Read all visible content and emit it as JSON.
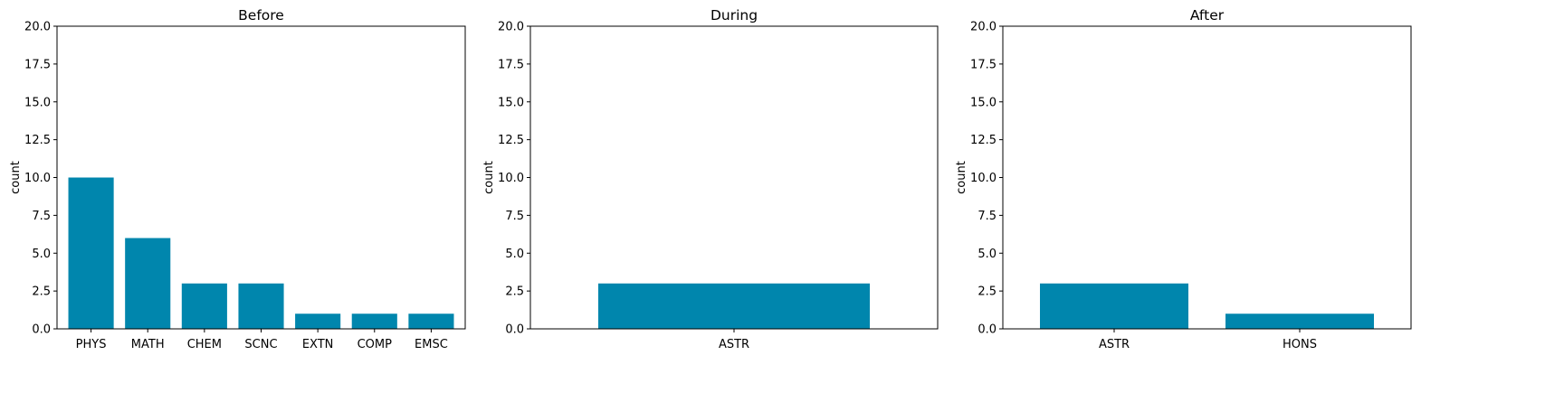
{
  "chart_data": [
    {
      "type": "bar",
      "title": "Before",
      "xlabel": "",
      "ylabel": "count",
      "ylim": [
        0,
        20
      ],
      "yticks": [
        "0.0",
        "2.5",
        "5.0",
        "7.5",
        "10.0",
        "12.5",
        "15.0",
        "17.5",
        "20.0"
      ],
      "categories": [
        "PHYS",
        "MATH",
        "CHEM",
        "SCNC",
        "EXTN",
        "COMP",
        "EMSC"
      ],
      "values": [
        10,
        6,
        3,
        3,
        1,
        1,
        1
      ],
      "grid": false
    },
    {
      "type": "bar",
      "title": "During",
      "xlabel": "",
      "ylabel": "count",
      "ylim": [
        0,
        20
      ],
      "yticks": [
        "0.0",
        "2.5",
        "5.0",
        "7.5",
        "10.0",
        "12.5",
        "15.0",
        "17.5",
        "20.0"
      ],
      "categories": [
        "ASTR"
      ],
      "values": [
        3
      ],
      "grid": false
    },
    {
      "type": "bar",
      "title": "After",
      "xlabel": "",
      "ylabel": "count",
      "ylim": [
        0,
        20
      ],
      "yticks": [
        "0.0",
        "2.5",
        "5.0",
        "7.5",
        "10.0",
        "12.5",
        "15.0",
        "17.5",
        "20.0"
      ],
      "categories": [
        "ASTR",
        "HONS"
      ],
      "values": [
        3,
        1
      ],
      "grid": false
    }
  ],
  "colors": {
    "bar": "#0086ad",
    "axis": "#000000",
    "background": "#ffffff"
  }
}
